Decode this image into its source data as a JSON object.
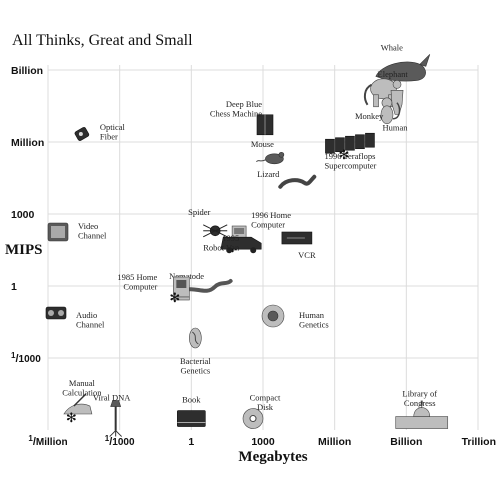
{
  "chart_data": {
    "type": "scatter",
    "title": "All Thinks, Great and Small",
    "xlabel": "Megabytes",
    "ylabel": "MIPS",
    "x_scale": "log",
    "y_scale": "log",
    "xlim": [
      1e-06,
      1000000000000
    ],
    "ylim": [
      1e-06,
      1000000000
    ],
    "grid": true,
    "x_ticks": [
      {
        "value": 1e-06,
        "label": "1/Million",
        "pre": "1",
        "sub": "Million"
      },
      {
        "value": 0.001,
        "label": "1/1000",
        "pre": "1",
        "sub": "1000"
      },
      {
        "value": 1,
        "label": "1"
      },
      {
        "value": 1000,
        "label": "1000"
      },
      {
        "value": 1000000,
        "label": "Million"
      },
      {
        "value": 1000000000,
        "label": "Billion"
      },
      {
        "value": 1000000000000,
        "label": "Trillion"
      }
    ],
    "y_ticks": [
      {
        "value": 1000000000,
        "label": "Billion"
      },
      {
        "value": 1000000,
        "label": "Million"
      },
      {
        "value": 1000,
        "label": "1000"
      },
      {
        "value": 1,
        "label": "1"
      },
      {
        "value": 0.001,
        "label": "1/1000",
        "pre": "1",
        "sub": "1000"
      }
    ],
    "points": [
      {
        "name": "Whale",
        "x": 300000000,
        "y": 800000000,
        "icon": "whale-icon",
        "star": false
      },
      {
        "name": "Elephant",
        "x": 2000000000,
        "y": 200000000,
        "icon": "elephant-icon",
        "star": false
      },
      {
        "name": "Human",
        "x": 600000000,
        "y": 80000000,
        "icon": "human-icon",
        "star": false
      },
      {
        "name": "Monkey",
        "x": 40000000,
        "y": 20000000,
        "icon": "monkey-icon",
        "star": false
      },
      {
        "name": "Optical Fiber",
        "x": 1e-05,
        "y": 1000000,
        "icon": "optical-fiber-icon",
        "star": false
      },
      {
        "name": "Deep Blue Chess Machine",
        "x": 1000,
        "y": 2000000,
        "icon": "chess-machine-icon",
        "star": false
      },
      {
        "name": "Mouse",
        "x": 3000,
        "y": 200000,
        "icon": "mouse-icon",
        "star": false
      },
      {
        "name": "1996 Teraflops Supercomputer",
        "x": 100000000,
        "y": 500000,
        "icon": "supercomputer-icon",
        "star": true
      },
      {
        "name": "Lizard",
        "x": 30000,
        "y": 20000,
        "icon": "lizard-icon",
        "star": false
      },
      {
        "name": "1996 Home Computer",
        "x": 100,
        "y": 100,
        "icon": "home-computer-icon",
        "star": true
      },
      {
        "name": "Spider",
        "x": 10,
        "y": 200,
        "icon": "spider-icon",
        "star": false
      },
      {
        "name": "Video Channel",
        "x": 1e-06,
        "y": 100,
        "icon": "video-channel-icon",
        "star": false
      },
      {
        "name": "1995 Robot Van",
        "x": 10,
        "y": 50,
        "icon": "robot-van-icon",
        "star": false
      },
      {
        "name": "VCR",
        "x": 10000,
        "y": 100,
        "icon": "vcr-icon",
        "star": false
      },
      {
        "name": "Nematode",
        "x": 30,
        "y": 1,
        "icon": "nematode-icon",
        "star": false
      },
      {
        "name": "1985 Home Computer",
        "x": 1,
        "y": 1,
        "icon": "old-computer-icon",
        "star": true
      },
      {
        "name": "Audio Channel",
        "x": 1e-06,
        "y": 0.1,
        "icon": "audio-channel-icon",
        "star": false
      },
      {
        "name": "Human Genetics",
        "x": 1000,
        "y": 0.1,
        "icon": "human-genetics-icon",
        "star": false
      },
      {
        "name": "Bacterial Genetics",
        "x": 1,
        "y": 0.01,
        "icon": "bacterial-genetics-icon",
        "star": false
      },
      {
        "name": "Manual Calculation",
        "x": 1e-05,
        "y": 1e-05,
        "icon": "hand-calculation-icon",
        "star": true
      },
      {
        "name": "Viral DNA",
        "x": 0.001,
        "y": 3e-06,
        "icon": "viral-dna-icon",
        "star": false
      },
      {
        "name": "Book",
        "x": 1,
        "y": 3e-06,
        "icon": "book-icon",
        "star": false
      },
      {
        "name": "Compact Disk",
        "x": 1000,
        "y": 3e-06,
        "icon": "compact-disk-icon",
        "star": false
      },
      {
        "name": "Library of Congress",
        "x": 3000000000,
        "y": 3e-06,
        "icon": "library-icon",
        "star": false
      }
    ],
    "label_lines": {
      "Whale": [
        "Whale"
      ],
      "Elephant": [
        "Elephant"
      ],
      "Human": [
        "Human"
      ],
      "Monkey": [
        "Monkey"
      ],
      "Optical Fiber": [
        "Optical",
        "Fiber"
      ],
      "Deep Blue Chess Machine": [
        "Deep Blue",
        "Chess Machine"
      ],
      "Mouse": [
        "Mouse"
      ],
      "1996 Teraflops Supercomputer": [
        "1996 Teraflops",
        "Supercomputer"
      ],
      "Lizard": [
        "Lizard"
      ],
      "1996 Home Computer": [
        "1996 Home",
        "Computer"
      ],
      "Spider": [
        "Spider"
      ],
      "Video Channel": [
        "Video",
        "Channel"
      ],
      "1995 Robot Van": [
        "1995",
        "Robot Van"
      ],
      "VCR": [
        "VCR"
      ],
      "Nematode": [
        "Nematode"
      ],
      "1985 Home Computer": [
        "1985 Home",
        "Computer"
      ],
      "Audio Channel": [
        "Audio",
        "Channel"
      ],
      "Human Genetics": [
        "Human",
        "Genetics"
      ],
      "Bacterial Genetics": [
        "Bacterial",
        "Genetics"
      ],
      "Manual Calculation": [
        "Manual",
        "Calculation"
      ],
      "Viral DNA": [
        "Viral DNA"
      ],
      "Book": [
        "Book"
      ],
      "Compact Disk": [
        "Compact",
        "Disk"
      ],
      "Library of Congress": [
        "Library of",
        "Congress"
      ]
    }
  }
}
